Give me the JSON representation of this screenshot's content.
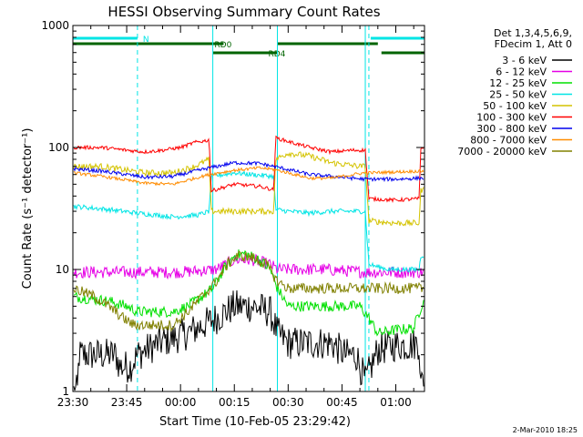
{
  "chart_data": {
    "type": "line",
    "title": "HESSI Observing Summary Count Rates",
    "xlabel": "Start Time (10-Feb-05 23:29:42)",
    "ylabel": "Count Rate (s⁻¹ detector⁻¹)",
    "yscale": "log",
    "ylim": [
      1,
      1000
    ],
    "x_unit": "minutes after 10-Feb-05 23:30",
    "xlim": [
      0,
      98
    ],
    "x_ticks": [
      {
        "x": 0,
        "label": "23:30"
      },
      {
        "x": 15,
        "label": "23:45"
      },
      {
        "x": 30,
        "label": "00:00"
      },
      {
        "x": 45,
        "label": "00:15"
      },
      {
        "x": 60,
        "label": "00:30"
      },
      {
        "x": 75,
        "label": "00:45"
      },
      {
        "x": 90,
        "label": "01:00"
      }
    ],
    "y_ticks": [
      {
        "y": 1,
        "label": "1"
      },
      {
        "y": 10,
        "label": "10"
      },
      {
        "y": 100,
        "label": "100"
      },
      {
        "y": 1000,
        "label": "1000"
      }
    ],
    "legend": {
      "header": [
        "Det 1,3,4,5,6,9,",
        "FDecim 1, Att 0"
      ],
      "placement": "right"
    },
    "footer": "2-Mar-2010 18:25",
    "flags": [
      {
        "label": "N",
        "color": "#00e5e5",
        "level": 0,
        "segments": [
          [
            0,
            18
          ],
          [
            83,
            98
          ]
        ]
      },
      {
        "label": "RD0",
        "color": "#006400",
        "level": 1,
        "segments": [
          [
            0,
            42
          ],
          [
            57,
            85
          ]
        ]
      },
      {
        "label": "RD4",
        "color": "#006400",
        "level": 2,
        "segments": [
          [
            39,
            57
          ],
          [
            86,
            98
          ]
        ]
      }
    ],
    "vlines": [
      {
        "x": 0,
        "style": "solid",
        "color": "#00e5e5"
      },
      {
        "x": 18,
        "style": "dashed",
        "color": "#00e5e5"
      },
      {
        "x": 39,
        "style": "solid",
        "color": "#00e5e5"
      },
      {
        "x": 57,
        "style": "solid",
        "color": "#00e5e5"
      },
      {
        "x": 81.5,
        "style": "solid",
        "color": "#00e5e5"
      },
      {
        "x": 82.5,
        "style": "dashed",
        "color": "#00e5e5"
      },
      {
        "x": 98,
        "style": "dashed",
        "color": "#00e5e5"
      }
    ],
    "series": [
      {
        "name": "3 - 6 keV",
        "color": "#000000",
        "noise": 0.55,
        "points": [
          [
            0,
            1
          ],
          [
            1.4,
            1
          ],
          [
            1.6,
            2
          ],
          [
            12,
            2
          ],
          [
            13,
            1.6
          ],
          [
            16,
            1.6
          ],
          [
            18,
            2
          ],
          [
            24,
            2.5
          ],
          [
            32,
            3
          ],
          [
            40,
            4
          ],
          [
            45,
            5
          ],
          [
            50,
            5
          ],
          [
            55,
            4.5
          ],
          [
            57,
            3
          ],
          [
            60,
            2.5
          ],
          [
            68,
            2.5
          ],
          [
            72,
            2.5
          ],
          [
            76,
            2
          ],
          [
            79,
            2
          ],
          [
            81.5,
            1.2
          ],
          [
            85,
            2.2
          ],
          [
            90,
            2.4
          ],
          [
            94,
            2.4
          ],
          [
            96.5,
            2.5
          ],
          [
            97,
            1.1
          ],
          [
            98,
            1.4
          ]
        ]
      },
      {
        "name": "6 - 12 keV",
        "color": "#e600e6",
        "noise": 0.2,
        "points": [
          [
            0,
            9.5
          ],
          [
            20,
            9.5
          ],
          [
            30,
            9.5
          ],
          [
            40,
            10
          ],
          [
            45,
            12
          ],
          [
            50,
            12
          ],
          [
            55,
            11
          ],
          [
            57,
            10
          ],
          [
            70,
            10
          ],
          [
            82,
            9.5
          ],
          [
            90,
            9.5
          ],
          [
            98,
            9.5
          ]
        ]
      },
      {
        "name": "12 - 25 keV",
        "color": "#00e000",
        "noise": 0.18,
        "points": [
          [
            0,
            6
          ],
          [
            10,
            5.5
          ],
          [
            15,
            5
          ],
          [
            18,
            4.5
          ],
          [
            28,
            4.5
          ],
          [
            32,
            5
          ],
          [
            36,
            6
          ],
          [
            39,
            7
          ],
          [
            42,
            10
          ],
          [
            45,
            13
          ],
          [
            48,
            13.5
          ],
          [
            52,
            12
          ],
          [
            55,
            10
          ],
          [
            57,
            7
          ],
          [
            60,
            5
          ],
          [
            70,
            5
          ],
          [
            80,
            5
          ],
          [
            82.5,
            4
          ],
          [
            85,
            3
          ],
          [
            90,
            3.2
          ],
          [
            95,
            3.3
          ],
          [
            98,
            6
          ]
        ]
      },
      {
        "name": "25 - 50 keV",
        "color": "#00e5e5",
        "noise": 0.08,
        "points": [
          [
            0,
            33
          ],
          [
            10,
            31
          ],
          [
            18,
            29
          ],
          [
            28,
            27
          ],
          [
            35,
            28
          ],
          [
            38,
            30
          ],
          [
            38.5,
            58
          ],
          [
            42,
            60
          ],
          [
            45,
            62
          ],
          [
            50,
            60
          ],
          [
            56,
            58
          ],
          [
            56.5,
            31
          ],
          [
            60,
            30
          ],
          [
            66,
            29
          ],
          [
            72,
            30
          ],
          [
            80,
            30
          ],
          [
            81.5,
            30
          ],
          [
            82.5,
            11
          ],
          [
            88,
            10
          ],
          [
            92,
            10
          ],
          [
            96.5,
            10
          ],
          [
            97,
            13
          ],
          [
            98,
            13
          ]
        ]
      },
      {
        "name": "50 - 100 keV",
        "color": "#d4c300",
        "noise": 0.1,
        "points": [
          [
            0,
            70
          ],
          [
            8,
            70
          ],
          [
            15,
            65
          ],
          [
            20,
            62
          ],
          [
            28,
            62
          ],
          [
            34,
            70
          ],
          [
            38,
            80
          ],
          [
            38.5,
            30
          ],
          [
            45,
            30
          ],
          [
            50,
            30
          ],
          [
            56,
            30
          ],
          [
            56.5,
            80
          ],
          [
            60,
            90
          ],
          [
            66,
            85
          ],
          [
            72,
            75
          ],
          [
            80,
            70
          ],
          [
            81.5,
            70
          ],
          [
            82.5,
            25
          ],
          [
            90,
            24
          ],
          [
            96.5,
            24
          ],
          [
            97,
            45
          ],
          [
            98,
            45
          ]
        ]
      },
      {
        "name": "100 - 300 keV",
        "color": "#ff0000",
        "noise": 0.06,
        "points": [
          [
            0,
            100
          ],
          [
            8,
            100
          ],
          [
            15,
            95
          ],
          [
            20,
            92
          ],
          [
            25,
            95
          ],
          [
            30,
            100
          ],
          [
            34,
            110
          ],
          [
            38,
            115
          ],
          [
            38.5,
            44
          ],
          [
            45,
            50
          ],
          [
            52,
            48
          ],
          [
            56,
            45
          ],
          [
            56.5,
            120
          ],
          [
            60,
            112
          ],
          [
            66,
            100
          ],
          [
            72,
            92
          ],
          [
            78,
            95
          ],
          [
            81.5,
            95
          ],
          [
            82.5,
            38
          ],
          [
            90,
            37
          ],
          [
            96.5,
            38
          ],
          [
            97,
            100
          ],
          [
            98,
            100
          ]
        ]
      },
      {
        "name": "300 - 800 keV",
        "color": "#0000ee",
        "noise": 0.06,
        "points": [
          [
            0,
            67
          ],
          [
            8,
            64
          ],
          [
            15,
            60
          ],
          [
            20,
            57
          ],
          [
            28,
            58
          ],
          [
            34,
            64
          ],
          [
            38,
            68
          ],
          [
            45,
            75
          ],
          [
            52,
            74
          ],
          [
            56,
            70
          ],
          [
            60,
            66
          ],
          [
            66,
            60
          ],
          [
            72,
            58
          ],
          [
            78,
            56
          ],
          [
            81.5,
            55
          ],
          [
            82.5,
            55
          ],
          [
            90,
            55
          ],
          [
            96.5,
            56
          ]
        ]
      },
      {
        "name": "800 - 7000 keV",
        "color": "#ff8c00",
        "noise": 0.05,
        "points": [
          [
            0,
            62
          ],
          [
            8,
            58
          ],
          [
            15,
            54
          ],
          [
            20,
            51
          ],
          [
            28,
            50
          ],
          [
            34,
            56
          ],
          [
            38,
            60
          ],
          [
            45,
            65
          ],
          [
            52,
            68
          ],
          [
            56,
            66
          ],
          [
            60,
            62
          ],
          [
            66,
            56
          ],
          [
            72,
            56
          ],
          [
            78,
            60
          ],
          [
            81.5,
            62
          ],
          [
            82.5,
            62
          ],
          [
            90,
            63
          ],
          [
            96.5,
            64
          ]
        ]
      },
      {
        "name": "7000 - 20000 keV",
        "color": "#808000",
        "noise": 0.18,
        "points": [
          [
            0,
            7
          ],
          [
            6,
            6
          ],
          [
            10,
            5
          ],
          [
            14,
            4
          ],
          [
            17,
            3.5
          ],
          [
            28,
            3.5
          ],
          [
            32,
            4.5
          ],
          [
            36,
            6
          ],
          [
            40,
            8
          ],
          [
            43,
            11
          ],
          [
            46,
            13
          ],
          [
            50,
            12.5
          ],
          [
            54,
            11
          ],
          [
            57,
            8
          ],
          [
            60,
            7
          ],
          [
            66,
            7
          ],
          [
            72,
            7
          ],
          [
            78,
            7
          ],
          [
            82.5,
            7
          ],
          [
            90,
            7
          ],
          [
            98,
            7
          ]
        ]
      }
    ]
  }
}
